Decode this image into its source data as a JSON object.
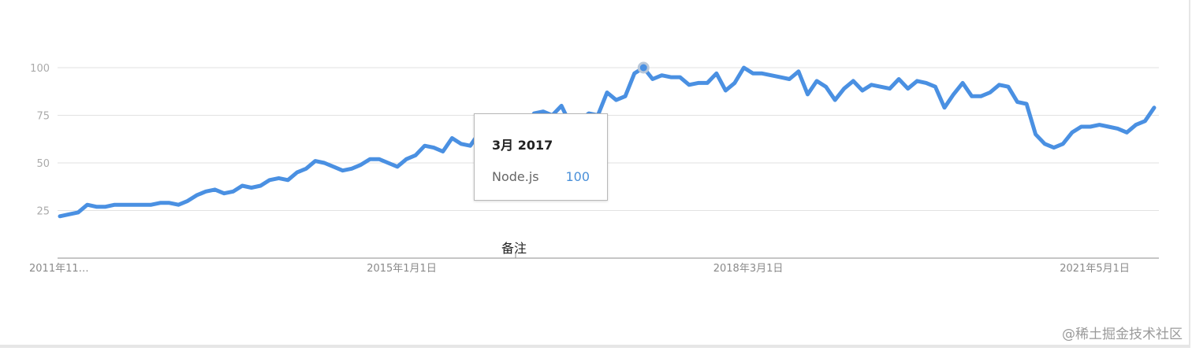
{
  "chart_data": {
    "type": "line",
    "y_ticks": [
      25,
      50,
      75,
      100
    ],
    "x_tick_labels": [
      "2011年11…",
      "2015年1月1日",
      "2018年3月1日",
      "2021年5月1日"
    ],
    "x_tick_index": [
      0,
      38,
      76,
      114
    ],
    "ylim": [
      0,
      100
    ],
    "grid": true,
    "line_color": "#4a90e2",
    "series": [
      {
        "name": "Node.js",
        "values": [
          22,
          23,
          24,
          28,
          27,
          27,
          28,
          28,
          28,
          28,
          28,
          29,
          29,
          28,
          30,
          33,
          35,
          36,
          34,
          35,
          38,
          37,
          38,
          41,
          42,
          41,
          45,
          47,
          51,
          50,
          48,
          46,
          47,
          49,
          52,
          52,
          50,
          48,
          52,
          54,
          59,
          58,
          56,
          63,
          60,
          59,
          66,
          63,
          64,
          62,
          65,
          68,
          76,
          77,
          75,
          80,
          70,
          72,
          76,
          75,
          87,
          83,
          85,
          97,
          100,
          94,
          96,
          95,
          95,
          91,
          92,
          92,
          97,
          88,
          92,
          100,
          97,
          97,
          96,
          95,
          94,
          98,
          86,
          93,
          90,
          83,
          89,
          93,
          88,
          91,
          90,
          89,
          94,
          89,
          93,
          92,
          90,
          79,
          86,
          92,
          85,
          85,
          87,
          91,
          90,
          82,
          81,
          65,
          60,
          58,
          60,
          66,
          69,
          69,
          70,
          69,
          68,
          66,
          70,
          72,
          79
        ]
      }
    ],
    "highlight_index": 64
  },
  "tooltip": {
    "title": "3月 2017",
    "series_name": "Node.js",
    "value": "100",
    "value_color": "#4a90d9"
  },
  "annotation_label": "备注",
  "watermark": "@稀土掘金技术社区"
}
